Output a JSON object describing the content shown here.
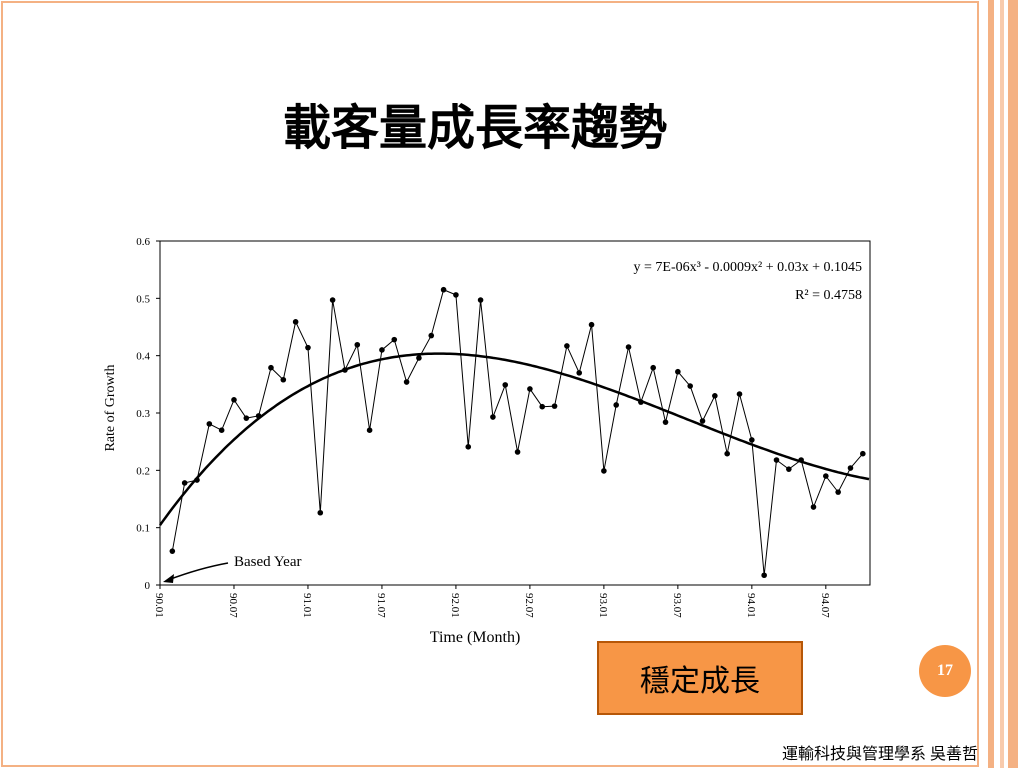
{
  "slide": {
    "title": "載客量成長率趨勢",
    "callout": "穩定成長",
    "page_number": "17",
    "footer": "運輸科技與管理學系  吳善哲"
  },
  "chart_data": {
    "type": "line",
    "x_label": "Time (Month)",
    "y_label": "Rate of  Growth",
    "equation": "y = 7E-06x³ - 0.0009x² + 0.03x + 0.1045",
    "r2": "R² = 0.4758",
    "trend_coefficients": [
      7e-06,
      -0.0009,
      0.03,
      0.1045
    ],
    "annotation": "Based Year",
    "categories": [
      "90.01",
      null,
      null,
      null,
      null,
      null,
      "90.07",
      null,
      null,
      null,
      null,
      null,
      "91.01",
      null,
      null,
      null,
      null,
      null,
      "91.07",
      null,
      null,
      null,
      null,
      null,
      "92.01",
      null,
      null,
      null,
      null,
      null,
      "92.07",
      null,
      null,
      null,
      null,
      null,
      "93.01",
      null,
      null,
      null,
      null,
      null,
      "93.07",
      null,
      null,
      null,
      null,
      null,
      "94.01",
      null,
      null,
      null,
      null,
      null,
      "94.07",
      null,
      null,
      null
    ],
    "values": [
      null,
      0.059,
      0.178,
      0.183,
      0.281,
      0.27,
      0.323,
      0.291,
      0.295,
      0.379,
      0.358,
      0.459,
      0.414,
      0.126,
      0.497,
      0.375,
      0.419,
      0.27,
      0.41,
      0.428,
      0.354,
      0.396,
      0.435,
      0.515,
      0.506,
      0.241,
      0.497,
      0.293,
      0.349,
      0.232,
      0.342,
      0.311,
      0.312,
      0.417,
      0.37,
      0.454,
      0.199,
      0.314,
      0.415,
      0.319,
      0.379,
      0.284,
      0.372,
      0.347,
      0.286,
      0.33,
      0.229,
      0.333,
      0.253,
      0.017,
      0.218,
      0.202,
      0.218,
      0.136,
      0.19,
      0.162,
      0.204,
      0.229
    ],
    "color": "#000000",
    "ylim": [
      0,
      0.6
    ],
    "yticks": [
      0,
      0.1,
      0.2,
      0.3,
      0.4,
      0.5,
      0.6
    ]
  }
}
